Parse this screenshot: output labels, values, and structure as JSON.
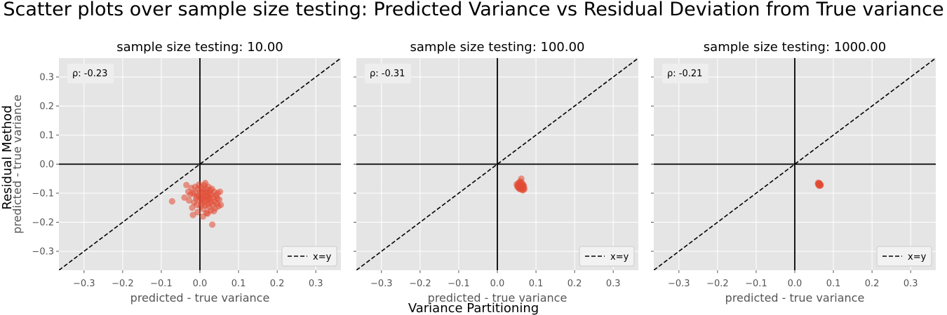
{
  "figure": {
    "suptitle": "Scatter plots over sample size testing: Predicted Variance vs Residual Deviation from True variance",
    "supxlabel": "Variance Partitioning",
    "supylabel": "Residual Method"
  },
  "colors": {
    "background": "#e5e5e5",
    "grid": "#ffffff",
    "point": "#e24a33",
    "axis_lines": "#000000",
    "tick_text": "#555555",
    "title_text": "#000000"
  },
  "chart_data": [
    {
      "type": "scatter",
      "title": "sample size testing: 10.00",
      "xlabel": "predicted - true variance",
      "ylabel": "predicted - true variance",
      "xlim": [
        -0.365,
        0.365
      ],
      "ylim": [
        -0.365,
        0.365
      ],
      "xticks": [
        "−0.3",
        "−0.2",
        "−0.1",
        "0.0",
        "0.1",
        "0.2",
        "0.3"
      ],
      "yticks": [
        "−0.3",
        "−0.2",
        "−0.1",
        "0.0",
        "0.1",
        "0.2",
        "0.3"
      ],
      "annotation": "ρ: -0.23",
      "legend": "x=y",
      "legend_loc": "lower-right",
      "grid": true,
      "points": [
        [
          -0.072,
          -0.128
        ],
        [
          -0.04,
          -0.115
        ],
        [
          -0.035,
          -0.072
        ],
        [
          -0.03,
          -0.095
        ],
        [
          -0.028,
          -0.125
        ],
        [
          -0.025,
          -0.105
        ],
        [
          -0.022,
          -0.082
        ],
        [
          -0.02,
          -0.15
        ],
        [
          -0.018,
          -0.175
        ],
        [
          -0.015,
          -0.132
        ],
        [
          -0.013,
          -0.098
        ],
        [
          -0.012,
          -0.078
        ],
        [
          -0.01,
          -0.118
        ],
        [
          -0.008,
          -0.14
        ],
        [
          -0.006,
          -0.165
        ],
        [
          -0.005,
          -0.085
        ],
        [
          -0.003,
          -0.108
        ],
        [
          -0.002,
          -0.07
        ],
        [
          0.0,
          -0.125
        ],
        [
          0.001,
          -0.095
        ],
        [
          0.002,
          -0.145
        ],
        [
          0.003,
          -0.112
        ],
        [
          0.004,
          -0.08
        ],
        [
          0.005,
          -0.135
        ],
        [
          0.006,
          -0.1
        ],
        [
          0.007,
          -0.122
        ],
        [
          0.008,
          -0.088
        ],
        [
          0.009,
          -0.155
        ],
        [
          0.01,
          -0.115
        ],
        [
          0.011,
          -0.072
        ],
        [
          0.012,
          -0.13
        ],
        [
          0.013,
          -0.098
        ],
        [
          0.014,
          -0.142
        ],
        [
          0.015,
          -0.108
        ],
        [
          0.016,
          -0.085
        ],
        [
          0.017,
          -0.168
        ],
        [
          0.018,
          -0.12
        ],
        [
          0.019,
          -0.095
        ],
        [
          0.02,
          -0.138
        ],
        [
          0.021,
          -0.11
        ],
        [
          0.022,
          -0.078
        ],
        [
          0.023,
          -0.125
        ],
        [
          0.024,
          -0.148
        ],
        [
          0.025,
          -0.1
        ],
        [
          0.026,
          -0.118
        ],
        [
          0.027,
          -0.09
        ],
        [
          0.028,
          -0.16
        ],
        [
          0.029,
          -0.132
        ],
        [
          0.03,
          -0.105
        ],
        [
          0.031,
          -0.085
        ],
        [
          0.032,
          -0.208
        ],
        [
          0.033,
          -0.14
        ],
        [
          0.035,
          -0.115
        ],
        [
          0.037,
          -0.095
        ],
        [
          0.038,
          -0.128
        ],
        [
          0.04,
          -0.152
        ],
        [
          0.042,
          -0.108
        ],
        [
          0.044,
          -0.135
        ],
        [
          0.046,
          -0.1
        ],
        [
          0.048,
          -0.145
        ],
        [
          0.05,
          -0.122
        ],
        [
          0.052,
          -0.095
        ],
        [
          0.054,
          -0.14
        ],
        [
          0.014,
          -0.065
        ],
        [
          0.008,
          -0.18
        ],
        [
          -0.018,
          -0.1
        ],
        [
          0.02,
          -0.17
        ],
        [
          0.036,
          -0.162
        ],
        [
          0.045,
          -0.118
        ],
        [
          -0.008,
          -0.112
        ]
      ]
    },
    {
      "type": "scatter",
      "title": "sample size testing: 100.00",
      "xlabel": "predicted - true variance",
      "ylabel": "",
      "xlim": [
        -0.365,
        0.365
      ],
      "ylim": [
        -0.365,
        0.365
      ],
      "xticks": [
        "−0.3",
        "−0.2",
        "−0.1",
        "0.0",
        "0.1",
        "0.2",
        "0.3"
      ],
      "yticks": [],
      "annotation": "ρ: -0.31",
      "legend": "x=y",
      "legend_loc": "lower-right",
      "grid": true,
      "points": [
        [
          0.05,
          -0.07
        ],
        [
          0.052,
          -0.078
        ],
        [
          0.054,
          -0.066
        ],
        [
          0.055,
          -0.082
        ],
        [
          0.056,
          -0.072
        ],
        [
          0.057,
          -0.062
        ],
        [
          0.058,
          -0.076
        ],
        [
          0.059,
          -0.084
        ],
        [
          0.06,
          -0.068
        ],
        [
          0.061,
          -0.074
        ],
        [
          0.062,
          -0.08
        ],
        [
          0.063,
          -0.064
        ],
        [
          0.064,
          -0.088
        ],
        [
          0.065,
          -0.072
        ],
        [
          0.066,
          -0.078
        ],
        [
          0.067,
          -0.07
        ],
        [
          0.068,
          -0.083
        ],
        [
          0.069,
          -0.076
        ],
        [
          0.07,
          -0.086
        ],
        [
          0.058,
          -0.086
        ],
        [
          0.062,
          -0.05
        ],
        [
          0.053,
          -0.074
        ],
        [
          0.066,
          -0.09
        ],
        [
          0.06,
          -0.06
        ],
        [
          0.056,
          -0.08
        ]
      ]
    },
    {
      "type": "scatter",
      "title": "sample size testing: 1000.00",
      "xlabel": "predicted - true variance",
      "ylabel": "",
      "xlim": [
        -0.365,
        0.365
      ],
      "ylim": [
        -0.365,
        0.365
      ],
      "xticks": [
        "−0.3",
        "−0.2",
        "−0.1",
        "0.0",
        "0.1",
        "0.2",
        "0.3"
      ],
      "yticks": [],
      "annotation": "ρ: -0.21",
      "legend": "x=y",
      "legend_loc": "lower-right",
      "grid": true,
      "points": [
        [
          0.06,
          -0.068
        ],
        [
          0.062,
          -0.072
        ],
        [
          0.064,
          -0.066
        ],
        [
          0.066,
          -0.07
        ],
        [
          0.063,
          -0.074
        ],
        [
          0.065,
          -0.068
        ],
        [
          0.061,
          -0.064
        ],
        [
          0.067,
          -0.072
        ],
        [
          0.064,
          -0.07
        ],
        [
          0.062,
          -0.066
        ],
        [
          0.066,
          -0.074
        ],
        [
          0.063,
          -0.068
        ]
      ]
    }
  ]
}
